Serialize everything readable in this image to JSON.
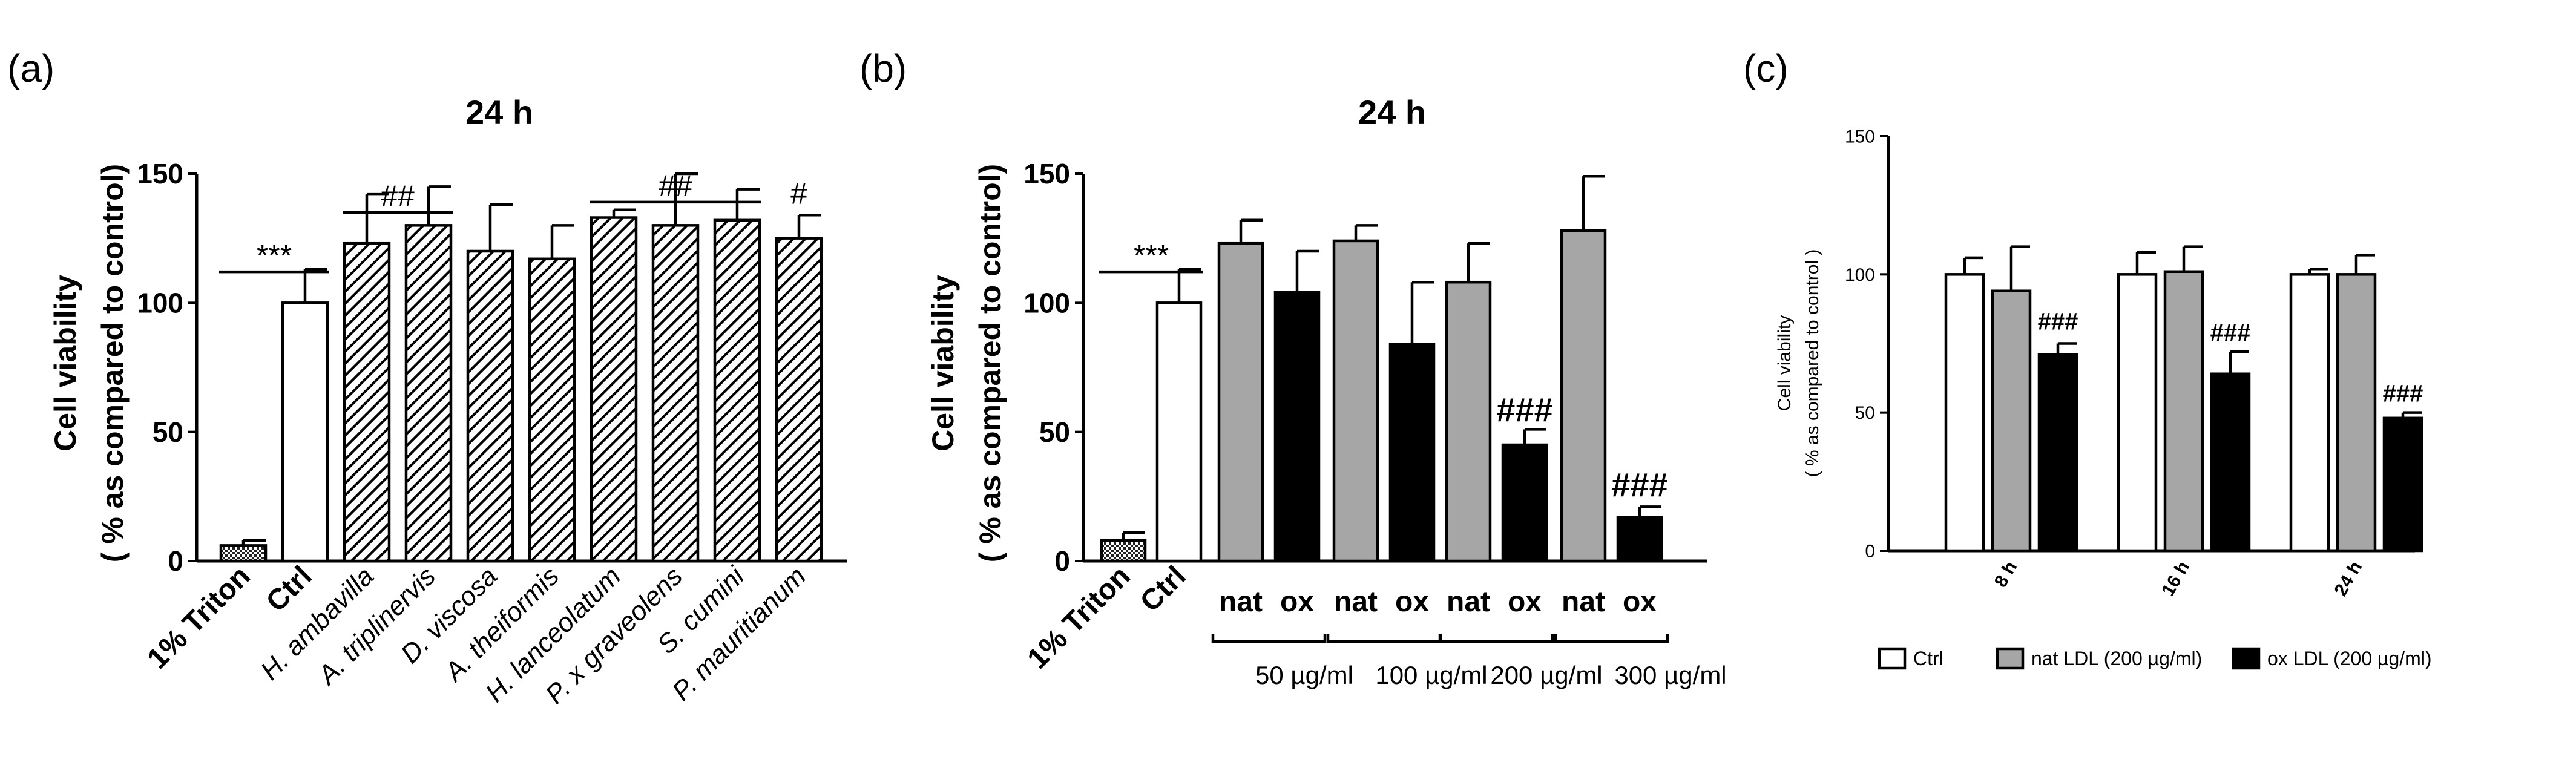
{
  "panels": [
    {
      "panel_label": "(a)",
      "ylabel_line1": "Cell viability",
      "ylabel_line2": "( % as compared to control)"
    },
    {
      "panel_label": "(b)",
      "ylabel_line1": "Cell viability",
      "ylabel_line2": "( % as compared to control)",
      "group_labels": [
        "50 µg/ml",
        "100 µg/ml",
        "200 µg/ml",
        "300 µg/ml"
      ]
    },
    {
      "panel_label": "(c)",
      "ylabel_line1": "Cell viability",
      "ylabel_line2": "( % as compared to control )"
    }
  ],
  "colors": {
    "white": "#ffffff",
    "gray": "#a6a6a6",
    "black": "#000000",
    "hatch": "#000000"
  },
  "chart_data": [
    {
      "type": "bar",
      "title": "24 h",
      "ylim": [
        0,
        150
      ],
      "yticks": [
        0,
        50,
        100,
        150
      ],
      "categories": [
        "1% Triton",
        "Ctrl",
        "H. ambavilla",
        "A. triplinervis",
        "D. viscosa",
        "A. theiformis",
        "H. lanceolatum",
        "P. x graveolens",
        "S. cumini",
        "P. mauritianum"
      ],
      "values": [
        6,
        100,
        123,
        130,
        120,
        117,
        133,
        130,
        132,
        125
      ],
      "errors": [
        2,
        13,
        19,
        15,
        18,
        13,
        3,
        20,
        12,
        9
      ],
      "fills": [
        "dots",
        "white",
        "hatch",
        "hatch",
        "hatch",
        "hatch",
        "hatch",
        "hatch",
        "hatch",
        "hatch"
      ],
      "italic_from": 2,
      "annotations": [
        {
          "text": "***",
          "bar_from": 0,
          "bar_to": 1,
          "y": 112
        },
        {
          "text": "##",
          "bar_from": 2,
          "bar_to": 3,
          "y": 135
        },
        {
          "text": "##",
          "bar_from": 6,
          "bar_to": 8,
          "y": 139
        },
        {
          "text": "#",
          "bar_from": 9,
          "bar_to": 9,
          "y": 136
        }
      ]
    },
    {
      "type": "bar",
      "title": "24 h",
      "ylim": [
        0,
        150
      ],
      "yticks": [
        0,
        50,
        100,
        150
      ],
      "categories": [
        "1% Triton",
        "Ctrl",
        "nat",
        "ox",
        "nat",
        "ox",
        "nat",
        "ox",
        "nat",
        "ox"
      ],
      "values": [
        8,
        100,
        123,
        104,
        124,
        84,
        108,
        45,
        128,
        17
      ],
      "errors": [
        3,
        13,
        9,
        16,
        6,
        24,
        15,
        6,
        21,
        4
      ],
      "fills": [
        "dots",
        "white",
        "gray",
        "black",
        "gray",
        "black",
        "gray",
        "black",
        "gray",
        "black"
      ],
      "annotations": [
        {
          "text": "***",
          "bar_from": 0,
          "bar_to": 1,
          "y": 112
        },
        {
          "text": "###",
          "bar_from": 7,
          "bar_to": 7,
          "y": 54
        },
        {
          "text": "###",
          "bar_from": 9,
          "bar_to": 9,
          "y": 25
        }
      ]
    },
    {
      "type": "bar",
      "categories": [
        "8 h",
        "16 h",
        "24 h"
      ],
      "ylim": [
        0,
        150
      ],
      "yticks": [
        0,
        50,
        100,
        150
      ],
      "series": [
        {
          "name": "Ctrl",
          "fill": "white",
          "values": [
            100,
            100,
            100
          ],
          "errors": [
            6,
            8,
            2
          ]
        },
        {
          "name": "nat LDL (200 µg/ml)",
          "fill": "gray",
          "values": [
            94,
            101,
            100
          ],
          "errors": [
            16,
            9,
            7
          ]
        },
        {
          "name": "ox LDL (200 µg/ml)",
          "fill": "black",
          "values": [
            71,
            64,
            48
          ],
          "errors": [
            4,
            8,
            2
          ]
        }
      ],
      "annotations": [
        {
          "text": "###",
          "group": 0,
          "y": 80
        },
        {
          "text": "###",
          "group": 1,
          "y": 76
        },
        {
          "text": "###",
          "group": 2,
          "y": 54
        }
      ]
    }
  ]
}
